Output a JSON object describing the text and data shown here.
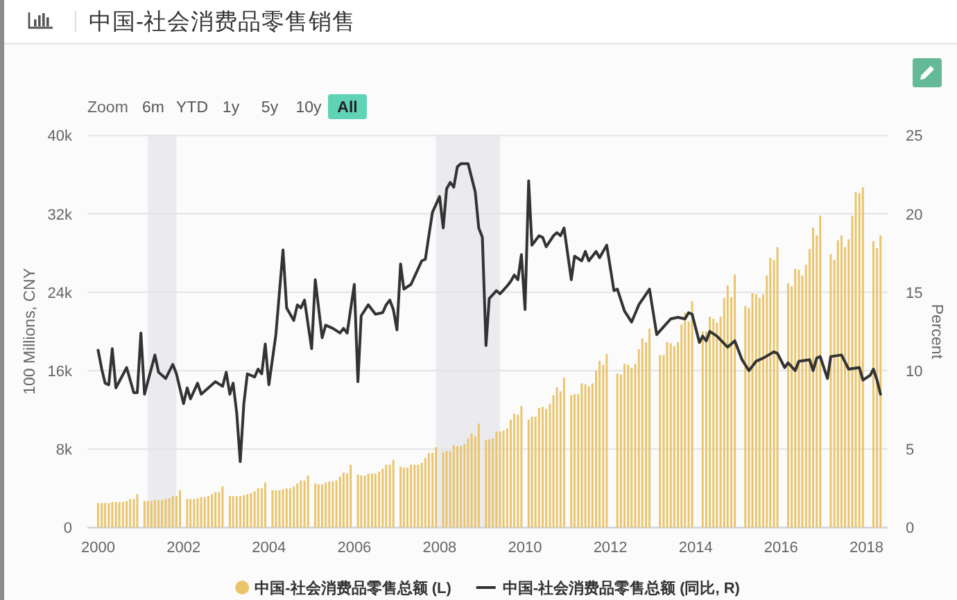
{
  "chart_data": {
    "type": "bar",
    "title": "中国-社会消费品零售销售",
    "annotations": [
      "Zoom",
      "6m",
      "YTD",
      "1y",
      "5y",
      "10y",
      "All"
    ],
    "ylabel": "100 Millions, CNY",
    "y2label": "Percent",
    "xlim": [
      "1999-10",
      "2018-07"
    ],
    "xticks": [
      "2000",
      "2002",
      "2004",
      "2006",
      "2008",
      "2010",
      "2012",
      "2014",
      "2016",
      "2018"
    ],
    "ylim": [
      0,
      40000
    ],
    "yticks": [
      0,
      {
        "value": 8000,
        "label": "8k"
      },
      {
        "value": 16000,
        "label": "16k"
      },
      {
        "value": 24000,
        "label": "24k"
      },
      {
        "value": 32000,
        "label": "32k"
      },
      {
        "value": 40000,
        "label": "40k"
      }
    ],
    "y2lim": [
      0,
      25
    ],
    "y2ticks": [
      0,
      5,
      10,
      15,
      20,
      25
    ],
    "grid": "y",
    "legend": "bottom",
    "bands": [
      {
        "axis": "x",
        "from": "2001-03",
        "to": "2001-11",
        "color": "#ebebef"
      },
      {
        "axis": "x",
        "from": "2007-12",
        "to": "2009-06",
        "color": "#ebebef"
      }
    ],
    "series": [
      {
        "name": "中国-社会消费品零售总额 (L)",
        "color": "#e9c46a",
        "x": [
          "2000-01",
          "2000-02",
          "2000-03",
          "2000-04",
          "2000-05",
          "2000-06",
          "2000-07",
          "2000-08",
          "2000-09",
          "2000-10",
          "2000-11",
          "2000-12",
          "2001-02",
          "2001-03",
          "2001-04",
          "2001-05",
          "2001-06",
          "2001-07",
          "2001-08",
          "2001-09",
          "2001-10",
          "2001-11",
          "2001-12",
          "2002-02",
          "2002-03",
          "2002-04",
          "2002-05",
          "2002-06",
          "2002-07",
          "2002-08",
          "2002-09",
          "2002-10",
          "2002-11",
          "2002-12",
          "2003-02",
          "2003-03",
          "2003-04",
          "2003-05",
          "2003-06",
          "2003-07",
          "2003-08",
          "2003-09",
          "2003-10",
          "2003-11",
          "2003-12",
          "2004-02",
          "2004-03",
          "2004-04",
          "2004-05",
          "2004-06",
          "2004-07",
          "2004-08",
          "2004-09",
          "2004-10",
          "2004-11",
          "2004-12",
          "2005-02",
          "2005-03",
          "2005-04",
          "2005-05",
          "2005-06",
          "2005-07",
          "2005-08",
          "2005-09",
          "2005-10",
          "2005-11",
          "2005-12",
          "2006-02",
          "2006-03",
          "2006-04",
          "2006-05",
          "2006-06",
          "2006-07",
          "2006-08",
          "2006-09",
          "2006-10",
          "2006-11",
          "2006-12",
          "2007-02",
          "2007-03",
          "2007-04",
          "2007-05",
          "2007-06",
          "2007-07",
          "2007-08",
          "2007-09",
          "2007-10",
          "2007-11",
          "2007-12",
          "2008-02",
          "2008-03",
          "2008-04",
          "2008-05",
          "2008-06",
          "2008-07",
          "2008-08",
          "2008-09",
          "2008-10",
          "2008-11",
          "2008-12",
          "2009-02",
          "2009-03",
          "2009-04",
          "2009-05",
          "2009-06",
          "2009-07",
          "2009-08",
          "2009-09",
          "2009-10",
          "2009-11",
          "2009-12",
          "2010-02",
          "2010-03",
          "2010-04",
          "2010-05",
          "2010-06",
          "2010-07",
          "2010-08",
          "2010-09",
          "2010-10",
          "2010-11",
          "2010-12",
          "2011-02",
          "2011-03",
          "2011-04",
          "2011-05",
          "2011-06",
          "2011-07",
          "2011-08",
          "2011-09",
          "2011-10",
          "2011-11",
          "2011-12",
          "2012-03",
          "2012-04",
          "2012-05",
          "2012-06",
          "2012-07",
          "2012-08",
          "2012-09",
          "2012-10",
          "2012-11",
          "2012-12",
          "2013-03",
          "2013-04",
          "2013-05",
          "2013-06",
          "2013-07",
          "2013-08",
          "2013-09",
          "2013-10",
          "2013-11",
          "2013-12",
          "2014-03",
          "2014-04",
          "2014-05",
          "2014-06",
          "2014-07",
          "2014-08",
          "2014-09",
          "2014-10",
          "2014-11",
          "2014-12",
          "2015-03",
          "2015-04",
          "2015-05",
          "2015-06",
          "2015-07",
          "2015-08",
          "2015-09",
          "2015-10",
          "2015-11",
          "2015-12",
          "2016-03",
          "2016-04",
          "2016-05",
          "2016-06",
          "2016-07",
          "2016-08",
          "2016-09",
          "2016-10",
          "2016-11",
          "2016-12",
          "2017-03",
          "2017-04",
          "2017-05",
          "2017-06",
          "2017-07",
          "2017-08",
          "2017-09",
          "2017-10",
          "2017-11",
          "2017-12",
          "2018-03",
          "2018-04",
          "2018-05"
        ],
        "values": [
          2500,
          2500,
          2500,
          2500,
          2600,
          2600,
          2600,
          2600,
          2700,
          2900,
          2900,
          3400,
          2700,
          2700,
          2700,
          2800,
          2800,
          2800,
          2900,
          3000,
          3200,
          3200,
          3800,
          2900,
          2900,
          2900,
          3000,
          3100,
          3100,
          3200,
          3400,
          3600,
          3600,
          4200,
          3200,
          3200,
          3200,
          3200,
          3300,
          3400,
          3500,
          3700,
          4000,
          4000,
          4600,
          3800,
          3800,
          3800,
          3900,
          4000,
          4000,
          4200,
          4500,
          4800,
          4800,
          5300,
          4500,
          4400,
          4400,
          4600,
          4700,
          4700,
          4800,
          5200,
          5600,
          5500,
          6400,
          5400,
          5300,
          5300,
          5500,
          5500,
          5500,
          5700,
          6000,
          6400,
          6400,
          6900,
          6200,
          6100,
          6100,
          6400,
          6400,
          6400,
          6600,
          7100,
          7600,
          7600,
          8200,
          7700,
          7800,
          7800,
          8400,
          8300,
          8300,
          8500,
          9100,
          9600,
          9300,
          10600,
          8900,
          9000,
          9100,
          9800,
          9800,
          9900,
          10100,
          11000,
          11600,
          11500,
          12400,
          11000,
          11300,
          11300,
          12200,
          12300,
          12100,
          12600,
          13500,
          14300,
          13900,
          15300,
          13500,
          13600,
          13600,
          14700,
          14600,
          14400,
          14700,
          16000,
          17000,
          16600,
          17700,
          15700,
          15600,
          16700,
          16600,
          16300,
          16700,
          18200,
          19300,
          18900,
          20300,
          17600,
          17600,
          18900,
          18800,
          18500,
          18900,
          20700,
          21900,
          21000,
          23100,
          20000,
          20000,
          21500,
          21300,
          20900,
          21500,
          23400,
          24700,
          23500,
          25800,
          22600,
          22400,
          23900,
          23800,
          23400,
          23800,
          25700,
          27500,
          27300,
          28600,
          24900,
          24600,
          26400,
          26300,
          25700,
          26800,
          28400,
          30600,
          29800,
          31800,
          27900,
          27300,
          29300,
          29800,
          28600,
          29400,
          31800,
          34200,
          34100,
          34700,
          29200,
          28500,
          29800
        ]
      },
      {
        "name": "中国-社会消费品零售总额 (同比, R)",
        "type": "line",
        "color": "#333333",
        "axis": "y2",
        "x": [
          "2000-01",
          "2000-02",
          "2000-03",
          "2000-04",
          "2000-05",
          "2000-06",
          "2000-09",
          "2000-11",
          "2000-12",
          "2001-01",
          "2001-02",
          "2001-03",
          "2001-05",
          "2001-06",
          "2001-08",
          "2001-10",
          "2001-11",
          "2002-01",
          "2002-02",
          "2002-03",
          "2002-05",
          "2002-06",
          "2002-10",
          "2002-12",
          "2003-01",
          "2003-02",
          "2003-03",
          "2003-04",
          "2003-05",
          "2003-06",
          "2003-07",
          "2003-09",
          "2003-10",
          "2003-11",
          "2003-12",
          "2004-01",
          "2004-03",
          "2004-05",
          "2004-06",
          "2004-08",
          "2004-09",
          "2004-10",
          "2004-11",
          "2005-01",
          "2005-02",
          "2005-04",
          "2005-05",
          "2005-07",
          "2005-09",
          "2005-10",
          "2005-11",
          "2006-01",
          "2006-02",
          "2006-03",
          "2006-05",
          "2006-07",
          "2006-09",
          "2006-10",
          "2006-11",
          "2006-12",
          "2007-01",
          "2007-02",
          "2007-03",
          "2007-05",
          "2007-06",
          "2007-08",
          "2007-09",
          "2007-10",
          "2007-11",
          "2008-01",
          "2008-02",
          "2008-03",
          "2008-04",
          "2008-05",
          "2008-06",
          "2008-07",
          "2008-09",
          "2008-11",
          "2008-12",
          "2009-01",
          "2009-02",
          "2009-03",
          "2009-05",
          "2009-06",
          "2009-08",
          "2009-09",
          "2009-10",
          "2009-11",
          "2009-12",
          "2010-01",
          "2010-02",
          "2010-03",
          "2010-05",
          "2010-06",
          "2010-07",
          "2010-09",
          "2010-10",
          "2010-11",
          "2010-12",
          "2011-02",
          "2011-03",
          "2011-05",
          "2011-06",
          "2011-07",
          "2011-09",
          "2011-10",
          "2011-12",
          "2012-02",
          "2012-03",
          "2012-05",
          "2012-07",
          "2012-09",
          "2012-12",
          "2013-02",
          "2013-04",
          "2013-06",
          "2013-08",
          "2013-10",
          "2013-11",
          "2013-12",
          "2014-02",
          "2014-03",
          "2014-04",
          "2014-05",
          "2014-07",
          "2014-10",
          "2014-12",
          "2015-02",
          "2015-04",
          "2015-06",
          "2015-08",
          "2015-11",
          "2015-12",
          "2016-02",
          "2016-03",
          "2016-05",
          "2016-06",
          "2016-09",
          "2016-10",
          "2016-11",
          "2016-12",
          "2017-02",
          "2017-03",
          "2017-06",
          "2017-08",
          "2017-11",
          "2017-12",
          "2018-02",
          "2018-03",
          "2018-04",
          "2018-05"
        ],
        "values": [
          11.3,
          10.1,
          9.2,
          9.1,
          11.4,
          8.9,
          10.2,
          8.6,
          8.6,
          12.4,
          8.5,
          9.3,
          11.0,
          9.9,
          9.5,
          10.4,
          9.8,
          7.9,
          8.9,
          8.2,
          9.2,
          8.5,
          9.3,
          9.0,
          9.9,
          8.5,
          9.2,
          7.3,
          4.2,
          7.9,
          9.8,
          9.6,
          10.1,
          9.8,
          11.7,
          9.1,
          12.3,
          17.7,
          14.0,
          13.2,
          14.2,
          14.0,
          14.5,
          11.4,
          15.8,
          12.1,
          12.9,
          12.7,
          12.4,
          12.7,
          12.4,
          15.5,
          9.3,
          13.5,
          14.2,
          13.6,
          13.7,
          14.2,
          14.5,
          13.9,
          12.6,
          16.8,
          15.2,
          15.5,
          16.0,
          17.0,
          17.1,
          18.6,
          20.1,
          21.1,
          19.1,
          21.6,
          22.0,
          21.7,
          23.0,
          23.2,
          23.2,
          21.4,
          19.1,
          18.5,
          11.6,
          14.6,
          15.1,
          14.9,
          15.4,
          15.7,
          16.1,
          15.8,
          17.4,
          13.9,
          22.1,
          18.0,
          18.6,
          18.5,
          17.9,
          18.6,
          18.8,
          18.6,
          19.1,
          15.8,
          17.3,
          17.0,
          17.6,
          17.0,
          17.6,
          17.2,
          18.0,
          15.1,
          15.2,
          13.8,
          13.1,
          14.2,
          15.2,
          12.3,
          12.8,
          13.3,
          13.4,
          13.3,
          13.7,
          13.6,
          11.8,
          12.2,
          11.9,
          12.5,
          12.2,
          11.5,
          11.9,
          10.7,
          10.0,
          10.6,
          10.8,
          11.2,
          11.1,
          10.2,
          10.5,
          10.0,
          10.6,
          10.7,
          10.0,
          10.8,
          10.9,
          9.5,
          10.9,
          11.0,
          10.1,
          10.2,
          9.4,
          9.7,
          10.1,
          9.4,
          8.5
        ]
      }
    ]
  }
}
